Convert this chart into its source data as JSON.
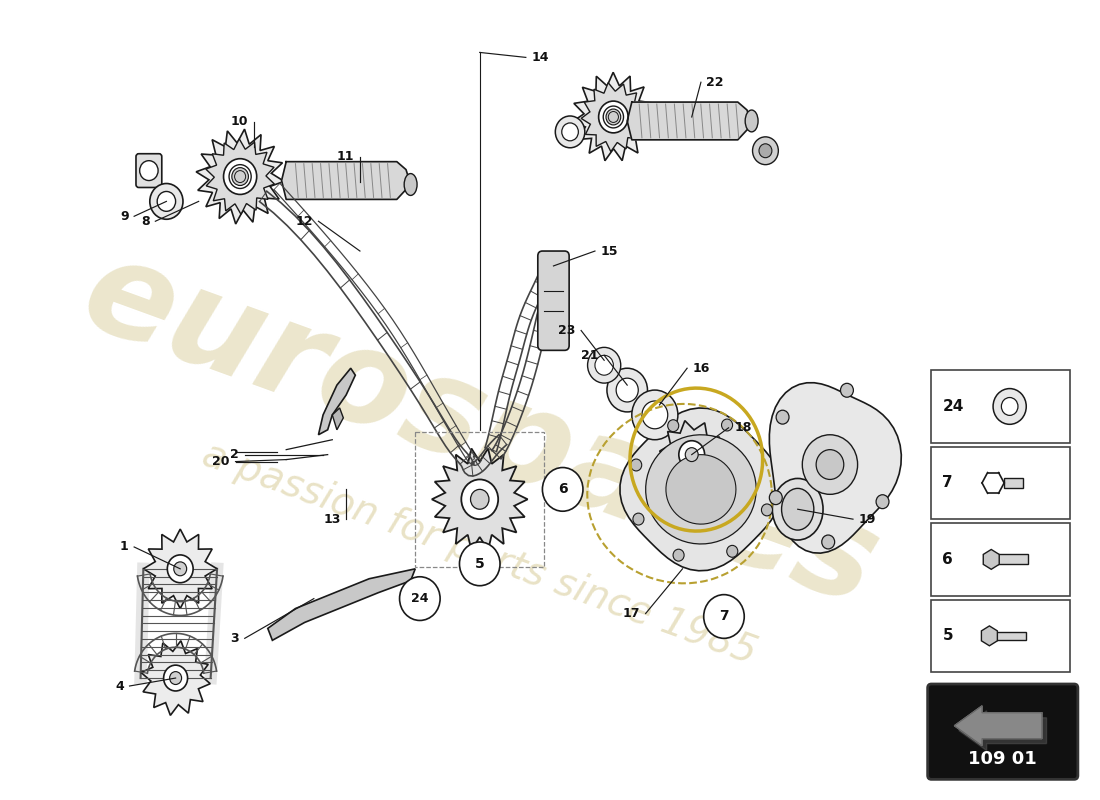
{
  "bg_color": "#ffffff",
  "part_number_box": "109 01",
  "watermark_color": "#c8b870",
  "line_color": "#1a1a1a",
  "callout_items": [
    {
      "num": "24",
      "row": 0
    },
    {
      "num": "7",
      "row": 1
    },
    {
      "num": "6",
      "row": 2
    },
    {
      "num": "5",
      "row": 3
    }
  ]
}
